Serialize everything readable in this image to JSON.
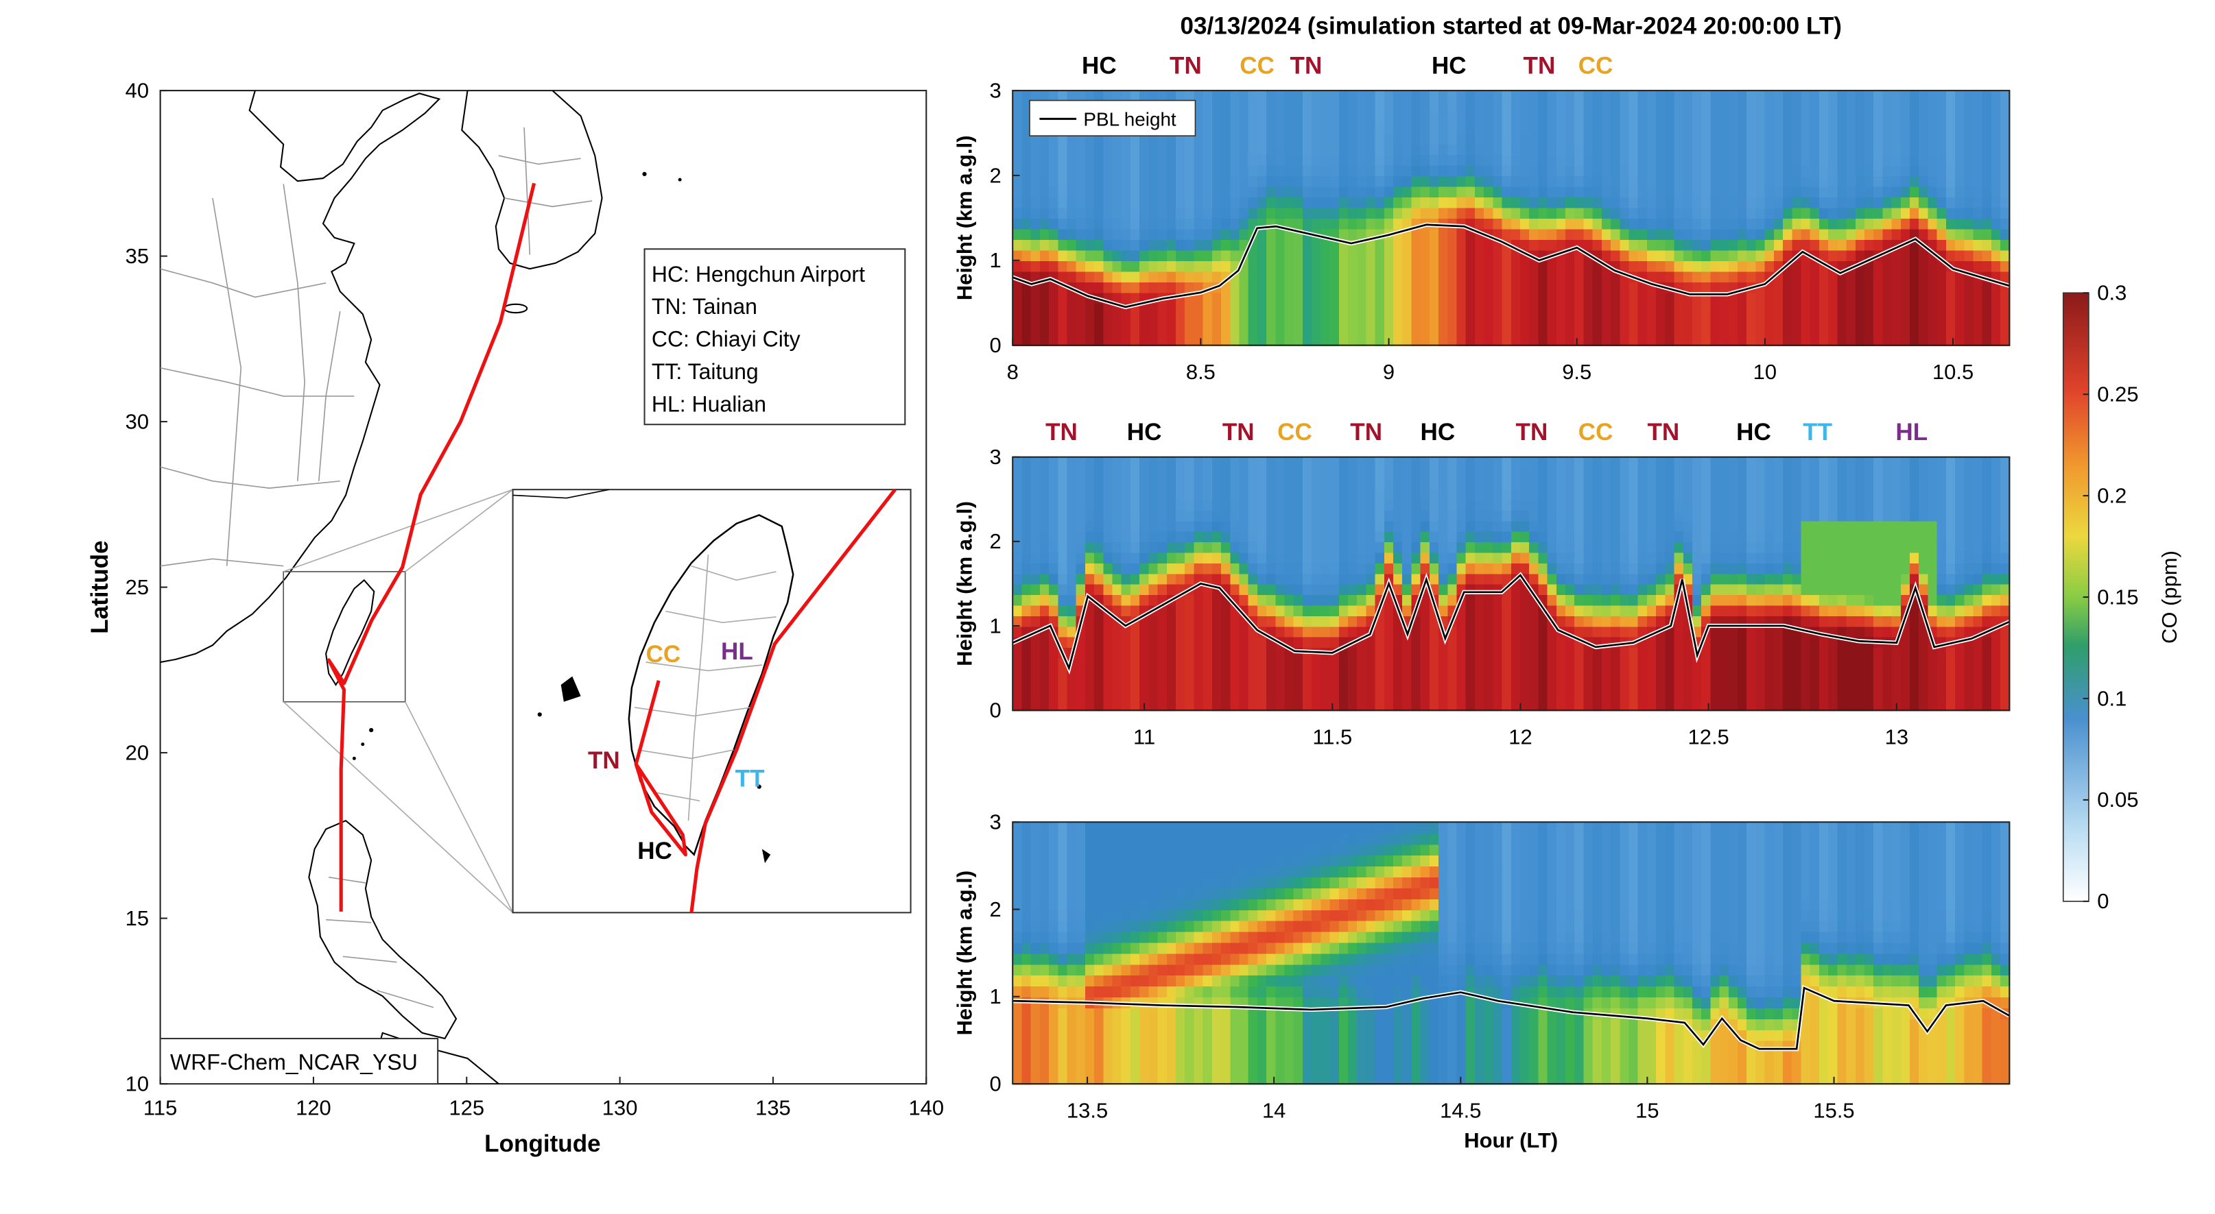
{
  "title": "03/13/2024 (simulation started at 09-Mar-2024 20:00:00 LT)",
  "colors": {
    "route": "#ee1111",
    "HC": "#000000",
    "TN": "#a3122b",
    "CC": "#e7a322",
    "TT": "#3fb5e9",
    "HL": "#7b2d8e",
    "pbl": "#000000"
  },
  "map": {
    "xlabel": "Longitude",
    "ylabel": "Latitude",
    "xlim": [
      115,
      140
    ],
    "ylim": [
      10,
      40
    ],
    "xticks": [
      "115",
      "120",
      "125",
      "130",
      "135",
      "140"
    ],
    "yticks": [
      "10",
      "15",
      "20",
      "25",
      "30",
      "35",
      "40"
    ],
    "model_label": "WRF-Chem_NCAR_YSU",
    "legend": [
      "HC: Hengchun Airport",
      "TN: Tainan",
      "CC: Chiayi City",
      "TT: Taitung",
      "HL: Hualian"
    ],
    "inset_site_labels": [
      "CC",
      "HL",
      "TN",
      "TT",
      "HC"
    ],
    "flight_track_lonlat": [
      [
        127.2,
        37.2
      ],
      [
        126.1,
        33.0
      ],
      [
        124.8,
        30.0
      ],
      [
        123.5,
        27.8
      ],
      [
        122.9,
        25.6
      ],
      [
        121.9,
        24.0
      ],
      [
        121.0,
        22.1
      ],
      [
        120.5,
        22.8
      ],
      [
        121.0,
        21.9
      ],
      [
        120.9,
        19.5
      ],
      [
        120.9,
        17.0
      ],
      [
        120.9,
        15.2
      ]
    ]
  },
  "chart_data": [
    {
      "type": "heatmap",
      "panel": 1,
      "xlabel": "",
      "ylabel": "Height (km a.g.l)",
      "xlim": [
        8.0,
        10.65
      ],
      "ylim": [
        0,
        3
      ],
      "xticks": [
        "8",
        "8.5",
        "9",
        "9.5",
        "10",
        "10.5"
      ],
      "yticks": [
        "0",
        "1",
        "2",
        "3"
      ],
      "legend": [
        "PBL height"
      ],
      "site_labels": [
        {
          "label": "HC",
          "x": 8.23
        },
        {
          "label": "TN",
          "x": 8.46
        },
        {
          "label": "CC",
          "x": 8.65
        },
        {
          "label": "TN",
          "x": 8.78
        },
        {
          "label": "HC",
          "x": 9.16
        },
        {
          "label": "TN",
          "x": 9.4
        },
        {
          "label": "CC",
          "x": 9.55
        }
      ],
      "pbl_height": {
        "x": [
          8.0,
          8.05,
          8.1,
          8.2,
          8.3,
          8.4,
          8.5,
          8.55,
          8.6,
          8.65,
          8.7,
          8.8,
          8.9,
          9.0,
          9.1,
          9.2,
          9.3,
          9.4,
          9.5,
          9.6,
          9.7,
          9.8,
          9.9,
          10.0,
          10.1,
          10.2,
          10.3,
          10.4,
          10.5,
          10.65
        ],
        "y": [
          0.8,
          0.72,
          0.78,
          0.58,
          0.45,
          0.55,
          0.62,
          0.7,
          0.88,
          1.38,
          1.4,
          1.3,
          1.2,
          1.3,
          1.42,
          1.4,
          1.22,
          1.0,
          1.15,
          0.88,
          0.72,
          0.6,
          0.6,
          0.72,
          1.1,
          0.85,
          1.05,
          1.25,
          0.9,
          0.7
        ]
      },
      "co_by_time_ppm": {
        "x": [
          8.0,
          8.3,
          8.45,
          8.55,
          8.62,
          8.7,
          8.8,
          8.9,
          9.0,
          9.1,
          9.2,
          9.5,
          9.7,
          9.9,
          10.1,
          10.3,
          10.5,
          10.65
        ],
        "surface": [
          0.29,
          0.28,
          0.25,
          0.2,
          0.14,
          0.13,
          0.13,
          0.14,
          0.17,
          0.21,
          0.26,
          0.28,
          0.27,
          0.26,
          0.27,
          0.29,
          0.28,
          0.27
        ]
      }
    },
    {
      "type": "heatmap",
      "panel": 2,
      "xlabel": "",
      "ylabel": "Height (km a.g.l)",
      "xlim": [
        10.65,
        13.3
      ],
      "ylim": [
        0,
        3
      ],
      "xticks": [
        "11",
        "11.5",
        "12",
        "12.5",
        "13"
      ],
      "yticks": [
        "0",
        "1",
        "2",
        "3"
      ],
      "site_labels": [
        {
          "label": "TN",
          "x": 10.78
        },
        {
          "label": "HC",
          "x": 11.0
        },
        {
          "label": "TN",
          "x": 11.25
        },
        {
          "label": "CC",
          "x": 11.4
        },
        {
          "label": "TN",
          "x": 11.59
        },
        {
          "label": "HC",
          "x": 11.78
        },
        {
          "label": "TN",
          "x": 12.03
        },
        {
          "label": "CC",
          "x": 12.2
        },
        {
          "label": "TN",
          "x": 12.38
        },
        {
          "label": "HC",
          "x": 12.62
        },
        {
          "label": "TT",
          "x": 12.79
        },
        {
          "label": "HL",
          "x": 13.04
        }
      ],
      "pbl_height": {
        "x": [
          10.65,
          10.75,
          10.8,
          10.85,
          10.95,
          11.05,
          11.15,
          11.2,
          11.3,
          11.4,
          11.5,
          11.6,
          11.65,
          11.7,
          11.75,
          11.8,
          11.85,
          11.95,
          12.0,
          12.1,
          12.2,
          12.3,
          12.4,
          12.43,
          12.47,
          12.5,
          12.6,
          12.7,
          12.8,
          12.9,
          13.0,
          13.05,
          13.1,
          13.2,
          13.3
        ],
        "y": [
          0.8,
          1.0,
          0.5,
          1.35,
          1.0,
          1.25,
          1.5,
          1.45,
          0.95,
          0.7,
          0.68,
          0.9,
          1.5,
          0.9,
          1.55,
          0.85,
          1.4,
          1.4,
          1.6,
          0.95,
          0.75,
          0.8,
          1.0,
          1.55,
          0.65,
          1.0,
          1.0,
          1.0,
          0.9,
          0.82,
          0.8,
          1.45,
          0.75,
          0.85,
          1.05
        ]
      },
      "co_by_time_ppm": {
        "x": [
          10.65,
          10.9,
          11.2,
          11.5,
          11.8,
          12.0,
          12.3,
          12.6,
          12.9,
          13.1,
          13.3
        ],
        "surface": [
          0.28,
          0.27,
          0.27,
          0.28,
          0.27,
          0.28,
          0.27,
          0.29,
          0.3,
          0.28,
          0.27
        ]
      }
    },
    {
      "type": "heatmap",
      "panel": 3,
      "xlabel": "Hour (LT)",
      "ylabel": "Height (km a.g.l)",
      "xlim": [
        13.3,
        15.97
      ],
      "ylim": [
        0,
        3
      ],
      "xticks": [
        "13.5",
        "14",
        "14.5",
        "15",
        "15.5"
      ],
      "yticks": [
        "0",
        "1",
        "2",
        "3"
      ],
      "pbl_height": {
        "x": [
          13.3,
          13.5,
          13.7,
          13.9,
          14.1,
          14.3,
          14.4,
          14.5,
          14.6,
          14.8,
          15.0,
          15.1,
          15.15,
          15.2,
          15.25,
          15.3,
          15.4,
          15.42,
          15.5,
          15.7,
          15.75,
          15.8,
          15.9,
          15.97
        ],
        "y": [
          0.95,
          0.93,
          0.9,
          0.88,
          0.85,
          0.88,
          0.98,
          1.05,
          0.95,
          0.82,
          0.75,
          0.7,
          0.45,
          0.75,
          0.5,
          0.4,
          0.4,
          1.1,
          0.95,
          0.9,
          0.6,
          0.9,
          0.95,
          0.78
        ]
      },
      "co_by_time_ppm": {
        "x": [
          13.3,
          13.5,
          13.7,
          13.9,
          14.1,
          14.3,
          14.5,
          14.7,
          14.9,
          15.1,
          15.3,
          15.5,
          15.7,
          15.9,
          15.97
        ],
        "surface": [
          0.22,
          0.2,
          0.18,
          0.15,
          0.12,
          0.1,
          0.1,
          0.12,
          0.15,
          0.18,
          0.2,
          0.19,
          0.18,
          0.2,
          0.24
        ]
      }
    }
  ],
  "colorbar": {
    "label": "CO (ppm)",
    "range": [
      0,
      0.3
    ],
    "ticks": [
      "0",
      "0.05",
      "0.1",
      "0.15",
      "0.2",
      "0.25",
      "0.3"
    ]
  }
}
